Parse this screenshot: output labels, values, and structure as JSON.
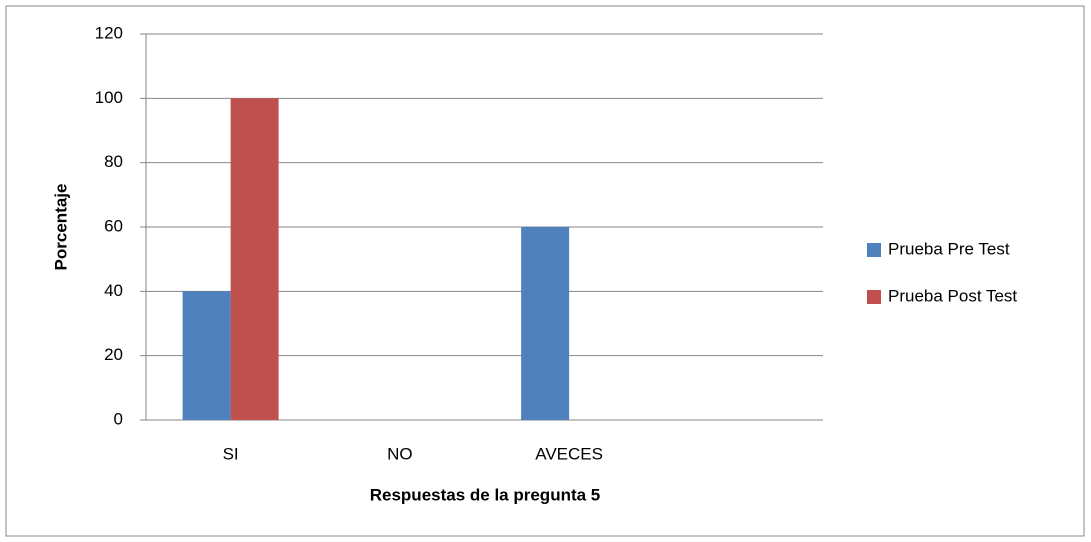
{
  "chart_data": {
    "type": "bar",
    "categories": [
      "SI",
      "NO",
      "AVECES",
      null
    ],
    "series": [
      {
        "name": "Prueba Pre Test",
        "color": "#4f81bd",
        "values": [
          40,
          0,
          60,
          null
        ]
      },
      {
        "name": "Prueba Post Test",
        "color": "#c0504d",
        "values": [
          100,
          0,
          0,
          null
        ]
      }
    ],
    "x_label": "Respuestas de la pregunta  5",
    "y_label": "Porcentaje",
    "ylim": [
      0,
      120
    ],
    "yticks": [
      0,
      20,
      40,
      60,
      80,
      100,
      120
    ],
    "grid": true,
    "legend": "right"
  }
}
